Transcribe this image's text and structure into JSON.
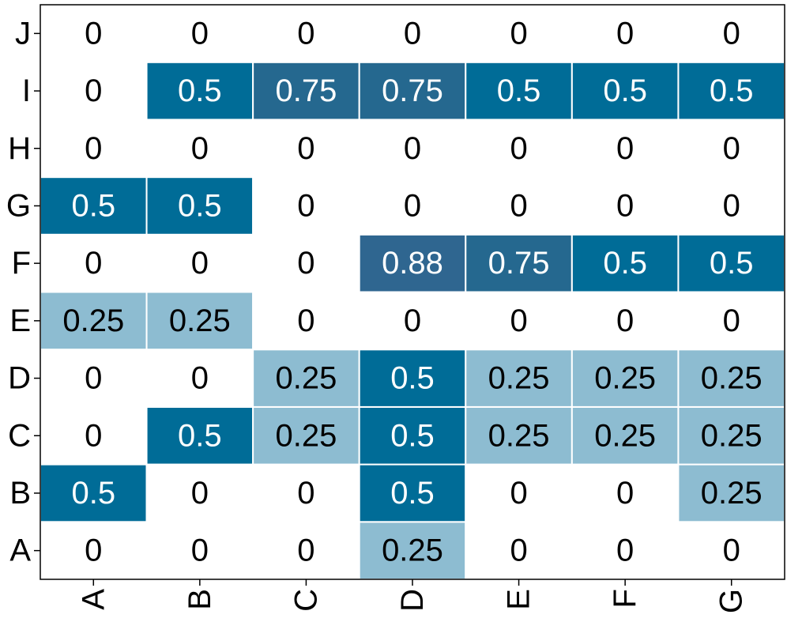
{
  "chart_data": {
    "type": "heatmap",
    "x_categories": [
      "A",
      "B",
      "C",
      "D",
      "E",
      "F",
      "G"
    ],
    "y_categories": [
      "A",
      "B",
      "C",
      "D",
      "E",
      "F",
      "G",
      "H",
      "I",
      "J"
    ],
    "values": [
      [
        0,
        0,
        0,
        0.25,
        0,
        0,
        0
      ],
      [
        0.5,
        0,
        0,
        0.5,
        0,
        0,
        0.25
      ],
      [
        0,
        0.5,
        0.25,
        0.5,
        0.25,
        0.25,
        0.25
      ],
      [
        0,
        0,
        0.25,
        0.5,
        0.25,
        0.25,
        0.25
      ],
      [
        0.25,
        0.25,
        0,
        0,
        0,
        0,
        0
      ],
      [
        0,
        0,
        0,
        0.88,
        0.75,
        0.5,
        0.5
      ],
      [
        0.5,
        0.5,
        0,
        0,
        0,
        0,
        0
      ],
      [
        0,
        0,
        0,
        0,
        0,
        0,
        0
      ],
      [
        0,
        0.5,
        0.75,
        0.75,
        0.5,
        0.5,
        0.5
      ],
      [
        0,
        0,
        0,
        0,
        0,
        0,
        0
      ]
    ],
    "color_stops": [
      {
        "value": 0,
        "fill": "#ffffff",
        "text": "#000000"
      },
      {
        "value": 0.25,
        "fill": "#8dbcd1",
        "text": "#000000"
      },
      {
        "value": 0.5,
        "fill": "#006c97",
        "text": "#ffffff"
      },
      {
        "value": 0.75,
        "fill": "#25688f",
        "text": "#ffffff"
      },
      {
        "value": 0.88,
        "fill": "#2f6690",
        "text": "#ffffff"
      }
    ]
  }
}
